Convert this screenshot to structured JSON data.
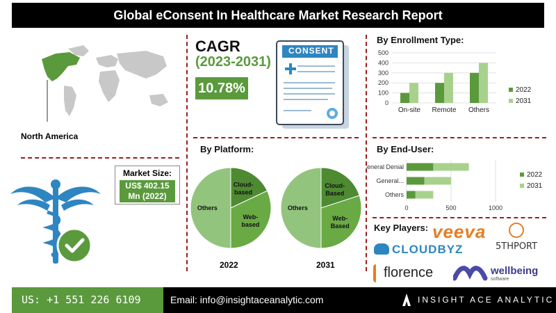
{
  "title": "Global eConsent In Healthcare Market Research Report",
  "region_label": "North America",
  "cagr": {
    "title": "CAGR",
    "period": "(2023-2031)",
    "value": "10.78%"
  },
  "consent_doc_label": "CONSENT",
  "market_size": {
    "title": "Market Size:",
    "line1": "US$ 402.15",
    "line2": "Mn (2022)"
  },
  "colors": {
    "green_dark": "#5a9a3c",
    "green_light": "#a9d18e",
    "pie_dark": "#4e8a32",
    "pie_mid": "#6aaa45",
    "pie_light": "#93c47d"
  },
  "chart_data": [
    {
      "type": "bar",
      "title": "By Enrollment Type:",
      "categories": [
        "On-site",
        "Remote",
        "Others"
      ],
      "series": [
        {
          "name": "2022",
          "values": [
            100,
            200,
            300
          ]
        },
        {
          "name": "2031",
          "values": [
            200,
            300,
            400
          ]
        }
      ],
      "ylim": [
        0,
        500
      ],
      "yticks": [
        "0",
        "100",
        "200",
        "300",
        "400",
        "500"
      ],
      "legend": "right"
    },
    {
      "type": "bar",
      "orientation": "horizontal",
      "stacked": true,
      "title": "By End-User:",
      "categories": [
        "General Denial",
        "General...",
        "Others"
      ],
      "series": [
        {
          "name": "2022",
          "values": [
            300,
            200,
            100
          ]
        },
        {
          "name": "2031",
          "values": [
            400,
            300,
            200
          ]
        }
      ],
      "xlim": [
        0,
        1000
      ],
      "xticks": [
        "0",
        "500",
        "1000"
      ],
      "legend": "right"
    },
    {
      "type": "pie",
      "title": "By Platform:",
      "caption": "2022",
      "slices": [
        {
          "label": "Cloud-based",
          "value": 18
        },
        {
          "label": "Web-based",
          "value": 32
        },
        {
          "label": "Others",
          "value": 50
        }
      ]
    },
    {
      "type": "pie",
      "caption": "2031",
      "slices": [
        {
          "label": "Cloud-Based",
          "value": 20
        },
        {
          "label": "Web-Based",
          "value": 30
        },
        {
          "label": "Others",
          "value": 50
        }
      ]
    }
  ],
  "key_players": {
    "title": "Key Players:",
    "logos": [
      "veeva",
      "5THPORT",
      "CLOUDBYZ",
      "florence",
      "wellbeing",
      "software"
    ]
  },
  "footer": {
    "phone": "US: +1 551 226 6109",
    "email": "Email: info@insightaceanalytic.com",
    "brand": "INSIGHT ACE ANALYTIC"
  }
}
